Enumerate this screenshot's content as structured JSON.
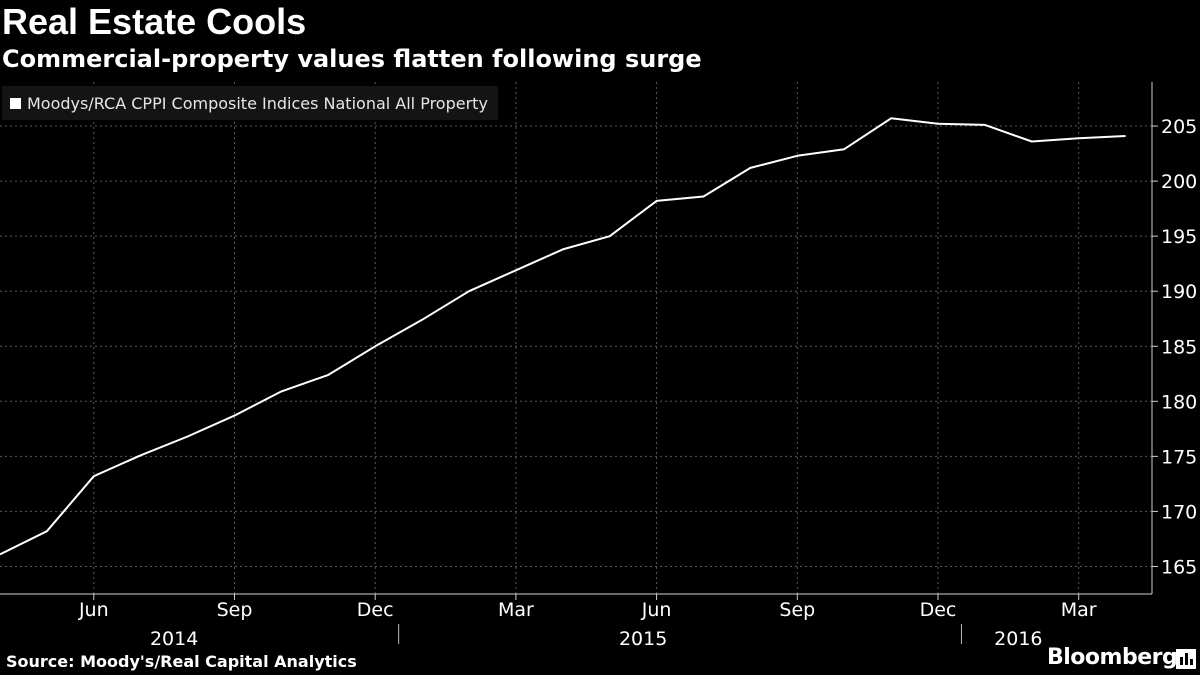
{
  "header": {
    "title": "Real Estate Cools",
    "subtitle": "Commercial-property values flatten following surge"
  },
  "legend": {
    "label": "Moodys/RCA CPPI Composite Indices National All Property",
    "color": "#ffffff"
  },
  "footer": {
    "source": "Source: Moody's/Real Capital Analytics",
    "brand": "Bloomberg",
    "brand_icon": "bloomberg-chart-icon"
  },
  "chart_data": {
    "type": "line",
    "title": "Real Estate Cools",
    "subtitle": "Commercial-property values flatten following surge",
    "ylim": [
      162.5,
      209
    ],
    "y_ticks": [
      165,
      170,
      175,
      180,
      185,
      190,
      195,
      200,
      205
    ],
    "y_axis_position": "right",
    "grid": true,
    "legend_position": "top-left",
    "x_month_ticks": [
      {
        "label": "Jun",
        "month": "2014-06"
      },
      {
        "label": "Sep",
        "month": "2014-09"
      },
      {
        "label": "Dec",
        "month": "2014-12"
      },
      {
        "label": "Mar",
        "month": "2015-03"
      },
      {
        "label": "Jun",
        "month": "2015-06"
      },
      {
        "label": "Sep",
        "month": "2015-09"
      },
      {
        "label": "Dec",
        "month": "2015-12"
      },
      {
        "label": "Mar",
        "month": "2016-03"
      }
    ],
    "x_year_labels": [
      {
        "label": "2014",
        "month": "2014-08"
      },
      {
        "label": "2015",
        "month": "2015-06"
      },
      {
        "label": "2016",
        "month": "2016-02"
      }
    ],
    "x_year_separators": [
      "2015-01",
      "2016-01"
    ],
    "series": [
      {
        "name": "Moodys/RCA CPPI Composite Indices National All Property",
        "color": "#ffffff",
        "x": [
          "2014-04",
          "2014-05",
          "2014-06",
          "2014-07",
          "2014-08",
          "2014-09",
          "2014-10",
          "2014-11",
          "2014-12",
          "2015-01",
          "2015-02",
          "2015-03",
          "2015-04",
          "2015-05",
          "2015-06",
          "2015-07",
          "2015-08",
          "2015-09",
          "2015-10",
          "2015-11",
          "2015-12",
          "2016-01",
          "2016-02",
          "2016-03",
          "2016-04"
        ],
        "values": [
          166.1,
          168.2,
          173.2,
          175.1,
          176.8,
          178.7,
          180.9,
          182.4,
          185.0,
          187.4,
          190.0,
          191.9,
          193.8,
          195.0,
          198.2,
          198.6,
          201.2,
          202.3,
          202.9,
          205.7,
          205.2,
          205.1,
          203.6,
          203.9,
          204.1
        ]
      }
    ]
  }
}
